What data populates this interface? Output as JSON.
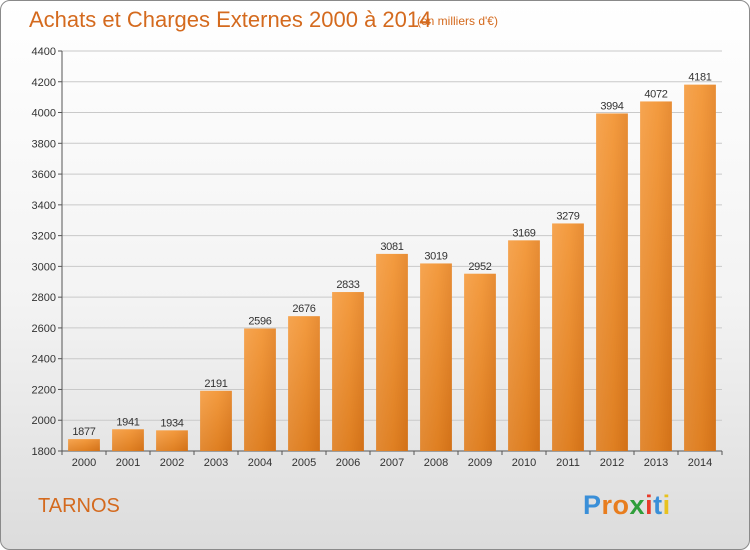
{
  "chart_data": {
    "type": "bar",
    "title": "Achats et Charges Externes 2000 à 2014",
    "subtitle": "(en milliers d'€)",
    "categories": [
      "2000",
      "2001",
      "2002",
      "2003",
      "2004",
      "2005",
      "2006",
      "2007",
      "2008",
      "2009",
      "2010",
      "2011",
      "2012",
      "2013",
      "2014"
    ],
    "values": [
      1877,
      1941,
      1934,
      2191,
      2596,
      2676,
      2833,
      3081,
      3019,
      2952,
      3169,
      3279,
      3994,
      4072,
      4181
    ],
    "ylim": [
      1800,
      4400
    ],
    "yticks": [
      1800,
      2000,
      2200,
      2400,
      2600,
      2800,
      3000,
      3200,
      3400,
      3600,
      3800,
      4000,
      4200,
      4400
    ],
    "grid": true,
    "bar_color": "#f0902e"
  },
  "footer": {
    "commune": "TARNOS",
    "logo": "Proxiti",
    "logo_colors": [
      "#3a8fd8",
      "#e87d1e",
      "#e87d1e",
      "#2f9e3a",
      "#e83a2a",
      "#3a8fd8",
      "#e8c21e"
    ]
  }
}
